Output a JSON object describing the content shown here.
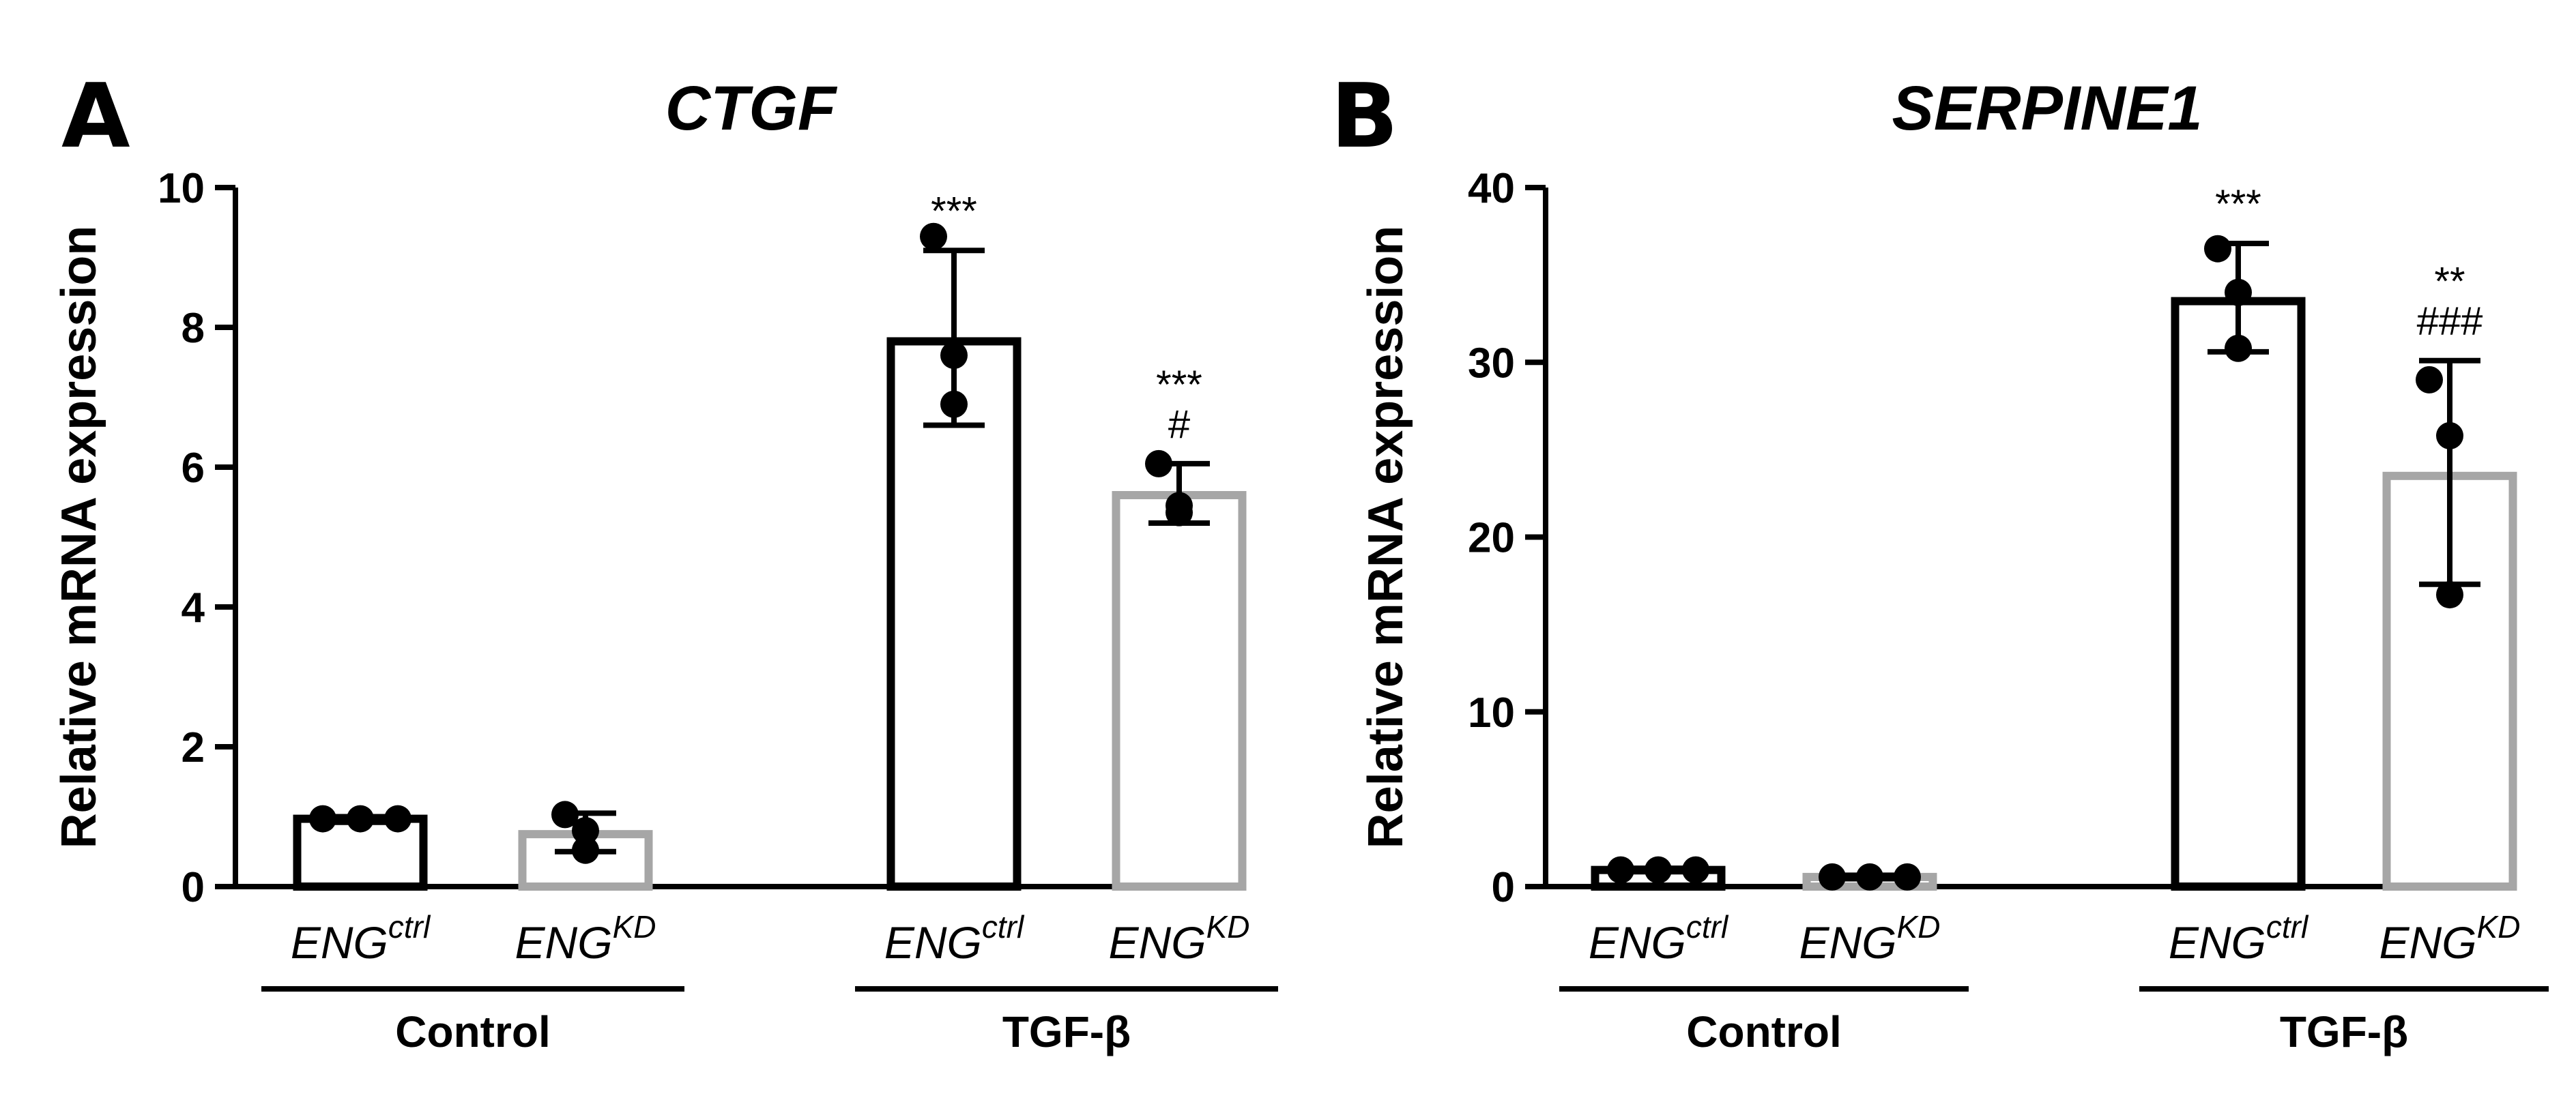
{
  "chart_data": [
    {
      "type": "bar",
      "panel_letter": "A",
      "title": "CTGF",
      "ylabel": "Relative mRNA expression",
      "ylim": [
        0,
        10
      ],
      "yticks": [
        "0",
        "2",
        "4",
        "6",
        "8",
        "10"
      ],
      "categories": [
        {
          "base": "ENG",
          "sup": "ctrl",
          "group": "Control",
          "color": "#000000",
          "value": 0.97,
          "error": [
            0.92,
            1.0
          ],
          "points": [
            0.97,
            0.97,
            0.97
          ],
          "annotations": []
        },
        {
          "base": "ENG",
          "sup": "KD",
          "group": "Control",
          "color": "#a6a6a6",
          "value": 0.75,
          "error": [
            0.5,
            1.05
          ],
          "points": [
            1.03,
            0.8,
            0.52
          ],
          "annotations": []
        },
        {
          "base": "ENG",
          "sup": "ctrl",
          "group": "TGF-β",
          "color": "#000000",
          "value": 7.8,
          "error": [
            6.6,
            9.1
          ],
          "points": [
            9.3,
            7.6,
            6.9
          ],
          "annotations": [
            "***"
          ]
        },
        {
          "base": "ENG",
          "sup": "KD",
          "group": "TGF-β",
          "color": "#a6a6a6",
          "value": 5.6,
          "error": [
            5.2,
            6.05
          ],
          "points": [
            6.05,
            5.45,
            5.35
          ],
          "annotations": [
            "***",
            "#"
          ]
        }
      ],
      "groups": [
        "Control",
        "TGF-β"
      ]
    },
    {
      "type": "bar",
      "panel_letter": "B",
      "title": "SERPINE1",
      "ylabel": "Relative mRNA expression",
      "ylim": [
        0,
        40
      ],
      "yticks": [
        "0",
        "10",
        "20",
        "30",
        "40"
      ],
      "categories": [
        {
          "base": "ENG",
          "sup": "ctrl",
          "group": "Control",
          "color": "#000000",
          "value": 0.95,
          "error": [
            0.85,
            1.05
          ],
          "points": [
            0.95,
            0.95,
            0.95
          ],
          "annotations": []
        },
        {
          "base": "ENG",
          "sup": "KD",
          "group": "Control",
          "color": "#a6a6a6",
          "value": 0.55,
          "error": [
            0.45,
            0.65
          ],
          "points": [
            0.55,
            0.55,
            0.55
          ],
          "annotations": []
        },
        {
          "base": "ENG",
          "sup": "ctrl",
          "group": "TGF-β",
          "color": "#000000",
          "value": 33.5,
          "error": [
            30.6,
            36.8
          ],
          "points": [
            36.5,
            34.0,
            30.8
          ],
          "annotations": [
            "***"
          ]
        },
        {
          "base": "ENG",
          "sup": "KD",
          "group": "TGF-β",
          "color": "#a6a6a6",
          "value": 23.5,
          "error": [
            17.3,
            30.1
          ],
          "points": [
            29.0,
            25.8,
            16.7
          ],
          "annotations": [
            "**",
            "###"
          ]
        }
      ],
      "groups": [
        "Control",
        "TGF-β"
      ]
    }
  ]
}
